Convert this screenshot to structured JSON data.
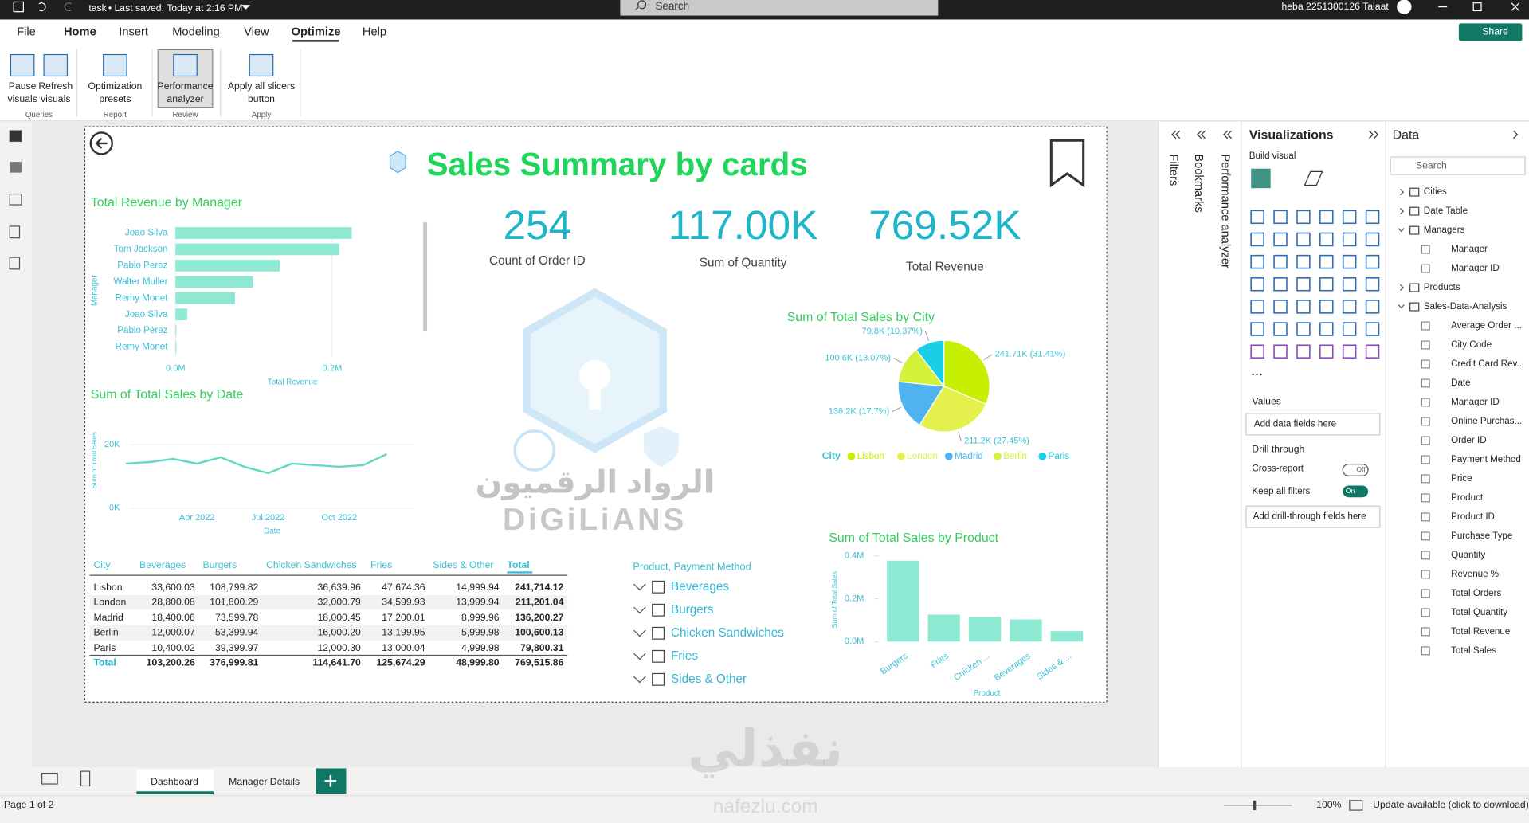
{
  "title_bar": {
    "file_name": "task",
    "save_status": "• Last saved: Today at 2:16 PM",
    "search": "Search",
    "user": "heba 2251300126 Talaat"
  },
  "ribbon": {
    "tabs": [
      "File",
      "Home",
      "Insert",
      "Modeling",
      "View",
      "Optimize",
      "Help"
    ],
    "share": "Share",
    "groups": [
      {
        "name": "Queries",
        "buttons": [
          {
            "lines": [
              "Pause",
              "visuals"
            ]
          },
          {
            "lines": [
              "Refresh",
              "visuals"
            ]
          }
        ]
      },
      {
        "name": "Report",
        "buttons": [
          {
            "lines": [
              "Optimization",
              "presets"
            ]
          }
        ]
      },
      {
        "name": "Review",
        "buttons": [
          {
            "lines": [
              "Performance",
              "analyzer"
            ]
          }
        ]
      },
      {
        "name": "Apply",
        "buttons": [
          {
            "lines": [
              "Apply all slicers",
              "button"
            ]
          }
        ]
      }
    ]
  },
  "report": {
    "title": "Sales Summary by cards",
    "cards": [
      {
        "value": "254",
        "label": "Count of Order ID"
      },
      {
        "value": "117.00K",
        "label": "Sum of Quantity"
      },
      {
        "value": "769.52K",
        "label": "Total Revenue"
      }
    ],
    "watermark": {
      "arabic": "الرواد الرقميون",
      "latin": "DiGiLiANS"
    }
  },
  "chart_data": [
    {
      "type": "bar",
      "horizontal": true,
      "title": "Total Revenue by Manager",
      "x_label": "Total Revenue",
      "y_label": "Manager",
      "categories": [
        "Joao Silva",
        "Tom Jackson",
        "Pablo Perez",
        "Walter Muller",
        "Remy Monet",
        "Joao Silva",
        "Pablo Perez",
        "Remy Monet"
      ],
      "values": [
        225000,
        209000,
        133000,
        99000,
        76000,
        15000,
        1000,
        1000
      ],
      "color": "#8ee9d3",
      "xlim": [
        0,
        300000
      ],
      "xticks": [
        {
          "value": 0,
          "label": "0.0M"
        },
        {
          "value": 200000,
          "label": "0.2M"
        }
      ]
    },
    {
      "type": "line",
      "title": "Sum of Total Sales by Date",
      "x_label": "Date",
      "y_label": "Sum of Total Sales",
      "x": [
        "Jan 2022",
        "Feb 2022",
        "Mar 2022",
        "Apr 2022",
        "May 2022",
        "Jun 2022",
        "Jul 2022",
        "Aug 2022",
        "Sep 2022",
        "Oct 2022",
        "Nov 2022",
        "Dec 2022"
      ],
      "values": [
        14000,
        14500,
        15500,
        14000,
        16000,
        13000,
        11000,
        14000,
        13500,
        13000,
        13500,
        17000
      ],
      "color": "#62d9c4",
      "ylim": [
        0,
        28000
      ],
      "xticks": [
        "Apr 2022",
        "Jul 2022",
        "Oct 2022"
      ],
      "yticks": [
        {
          "value": 0,
          "label": "0K"
        },
        {
          "value": 20000,
          "label": "20K"
        }
      ]
    },
    {
      "type": "pie",
      "title": "Sum of Total Sales by City",
      "legend_title": "City",
      "categories": [
        "Lisbon",
        "London",
        "Madrid",
        "Berlin",
        "Paris"
      ],
      "values": [
        241710,
        211200,
        136200,
        100600,
        79800
      ],
      "value_labels": [
        "241.71K (31.41%)",
        "211.2K (27.45%)",
        "136.2K (17.7%)",
        "100.6K (13.07%)",
        "79.8K (10.37%)"
      ],
      "colors": [
        "#c6f000",
        "#e4f04c",
        "#4fb3f0",
        "#d2f23a",
        "#19cfe8"
      ]
    },
    {
      "type": "bar",
      "title": "Sum of Total Sales by Product",
      "x_label": "Product",
      "y_label": "Sum of Total Sales",
      "categories": [
        "Burgers",
        "Fries",
        "Chicken ...",
        "Beverages",
        "Sides & ..."
      ],
      "values": [
        377000,
        125700,
        114600,
        103200,
        49000
      ],
      "color": "#8ee9d3",
      "ylim": [
        0,
        400000
      ],
      "yticks": [
        {
          "value": 0,
          "label": "0.0M"
        },
        {
          "value": 200000,
          "label": "0.2M"
        },
        {
          "value": 400000,
          "label": "0.4M"
        }
      ]
    }
  ],
  "table": {
    "columns": [
      "City",
      "Beverages",
      "Burgers",
      "Chicken Sandwiches",
      "Fries",
      "Sides & Other",
      "Total"
    ],
    "rows": [
      [
        "Lisbon",
        "33,600.03",
        "108,799.82",
        "36,639.96",
        "47,674.36",
        "14,999.94",
        "241,714.12"
      ],
      [
        "London",
        "28,800.08",
        "101,800.29",
        "32,000.79",
        "34,599.93",
        "13,999.94",
        "211,201.04"
      ],
      [
        "Madrid",
        "18,400.06",
        "73,599.78",
        "18,000.45",
        "17,200.01",
        "8,999.96",
        "136,200.27"
      ],
      [
        "Berlin",
        "12,000.07",
        "53,399.94",
        "16,000.20",
        "13,199.95",
        "5,999.98",
        "100,600.13"
      ],
      [
        "Paris",
        "10,400.02",
        "39,399.97",
        "12,000.30",
        "13,000.04",
        "4,999.98",
        "79,800.31"
      ]
    ],
    "total": [
      "Total",
      "103,200.26",
      "376,999.81",
      "114,641.70",
      "125,674.29",
      "48,999.80",
      "769,515.86"
    ]
  },
  "slicer": {
    "title": "Product, Payment Method",
    "items": [
      "Beverages",
      "Burgers",
      "Chicken Sandwiches",
      "Fries",
      "Sides & Other"
    ]
  },
  "side_panes": {
    "filters": "Filters",
    "bookmarks": "Bookmarks",
    "performance": "Performance analyzer"
  },
  "visualizations": {
    "title": "Visualizations",
    "build": "Build visual",
    "values": "Values",
    "values_hint": "Add data fields here",
    "drill": "Drill through",
    "cross_report": "Cross-report",
    "off": "Off",
    "keep_filters": "Keep all filters",
    "on": "On",
    "drill_hint": "Add drill-through fields here"
  },
  "data_pane": {
    "title": "Data",
    "search": "Search",
    "tables": [
      {
        "name": "Cities",
        "fields": []
      },
      {
        "name": "Date Table",
        "fields": []
      },
      {
        "name": "Managers",
        "fields": [
          "Manager",
          "Manager ID"
        ]
      },
      {
        "name": "Products",
        "fields": []
      },
      {
        "name": "Sales-Data-Analysis",
        "fields": [
          "Average Order ...",
          "City Code",
          "Credit Card Rev...",
          "Date",
          "Manager ID",
          "Online Purchas...",
          "Order ID",
          "Payment Method",
          "Price",
          "Product",
          "Product ID",
          "Purchase Type",
          "Quantity",
          "Revenue %",
          "Total Orders",
          "Total Quantity",
          "Total Revenue",
          "Total Sales"
        ]
      }
    ]
  },
  "page_tabs": [
    "Dashboard",
    "Manager Details"
  ],
  "status": {
    "page": "Page 1 of 2",
    "zoom": "100%",
    "update": "Update available (click to download)"
  },
  "overlay_watermark": {
    "arabic": "نفذلي",
    "latin": "nafezlu.com"
  }
}
